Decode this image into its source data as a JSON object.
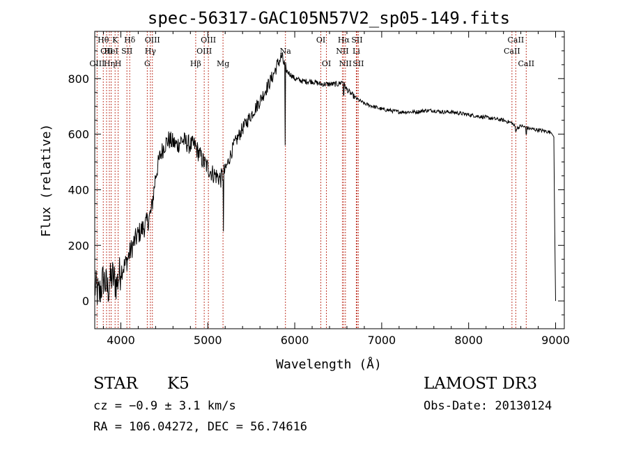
{
  "chart_data": {
    "type": "line",
    "title": "spec-56317-GAC105N57V2_sp05-149.fits",
    "xlabel": "Wavelength (Å)",
    "ylabel": "Flux (relative)",
    "xlim": [
      3700,
      9100
    ],
    "ylim": [
      -100,
      970
    ],
    "x_ticks": [
      4000,
      5000,
      6000,
      7000,
      8000,
      9000
    ],
    "y_ticks": [
      0,
      200,
      400,
      600,
      800
    ],
    "x_tick_labels": [
      "4000",
      "5000",
      "6000",
      "7000",
      "8000",
      "9000"
    ],
    "y_tick_labels": [
      "0",
      "200",
      "400",
      "600",
      "800"
    ],
    "series": [
      {
        "name": "spectrum",
        "anchors": [
          [
            3700,
            50
          ],
          [
            3750,
            20
          ],
          [
            3800,
            80
          ],
          [
            3850,
            40
          ],
          [
            3900,
            90
          ],
          [
            3950,
            60
          ],
          [
            4000,
            110
          ],
          [
            4050,
            130
          ],
          [
            4100,
            170
          ],
          [
            4150,
            210
          ],
          [
            4200,
            240
          ],
          [
            4250,
            260
          ],
          [
            4300,
            280
          ],
          [
            4350,
            320
          ],
          [
            4400,
            450
          ],
          [
            4450,
            520
          ],
          [
            4500,
            560
          ],
          [
            4550,
            580
          ],
          [
            4600,
            570
          ],
          [
            4650,
            560
          ],
          [
            4700,
            580
          ],
          [
            4750,
            570
          ],
          [
            4800,
            560
          ],
          [
            4850,
            560
          ],
          [
            4900,
            530
          ],
          [
            4950,
            500
          ],
          [
            5000,
            480
          ],
          [
            5050,
            460
          ],
          [
            5100,
            450
          ],
          [
            5150,
            440
          ],
          [
            5200,
            470
          ],
          [
            5300,
            560
          ],
          [
            5400,
            620
          ],
          [
            5500,
            670
          ],
          [
            5600,
            720
          ],
          [
            5700,
            780
          ],
          [
            5750,
            810
          ],
          [
            5800,
            850
          ],
          [
            5850,
            880
          ],
          [
            5900,
            830
          ],
          [
            6000,
            800
          ],
          [
            6100,
            790
          ],
          [
            6200,
            790
          ],
          [
            6300,
            780
          ],
          [
            6400,
            780
          ],
          [
            6500,
            780
          ],
          [
            6550,
            790
          ],
          [
            6600,
            760
          ],
          [
            6700,
            730
          ],
          [
            6800,
            710
          ],
          [
            6900,
            700
          ],
          [
            7000,
            690
          ],
          [
            7100,
            685
          ],
          [
            7200,
            680
          ],
          [
            7300,
            680
          ],
          [
            7400,
            680
          ],
          [
            7500,
            685
          ],
          [
            7600,
            685
          ],
          [
            7700,
            680
          ],
          [
            7800,
            680
          ],
          [
            7900,
            675
          ],
          [
            8000,
            670
          ],
          [
            8100,
            665
          ],
          [
            8200,
            660
          ],
          [
            8300,
            655
          ],
          [
            8400,
            650
          ],
          [
            8500,
            640
          ],
          [
            8550,
            620
          ],
          [
            8600,
            630
          ],
          [
            8700,
            620
          ],
          [
            8800,
            615
          ],
          [
            8900,
            610
          ],
          [
            8950,
            605
          ],
          [
            8980,
            590
          ],
          [
            8990,
            250
          ],
          [
            9000,
            0
          ]
        ],
        "noise": [
          [
            3700,
            4000,
            70
          ],
          [
            4000,
            4400,
            40
          ],
          [
            4400,
            5200,
            35
          ],
          [
            5200,
            5900,
            25
          ],
          [
            5900,
            6700,
            10
          ],
          [
            6700,
            8950,
            7
          ]
        ]
      }
    ],
    "spikes": [
      [
        5180,
        250
      ],
      [
        5890,
        560
      ],
      [
        6563,
        740
      ],
      [
        8542,
        610
      ],
      [
        8662,
        600
      ]
    ],
    "line_markers": [
      {
        "wl": 3798,
        "label": "Hθ",
        "row": 1
      },
      {
        "wl": 3836,
        "label": "OII",
        "row": 2
      },
      {
        "wl": 3727,
        "label": "OIII",
        "row": 3
      },
      {
        "wl": 3868,
        "label": "Hη",
        "row": 3
      },
      {
        "wl": 3889,
        "label": "HeI",
        "row": 2
      },
      {
        "wl": 3934,
        "label": "K",
        "row": 1
      },
      {
        "wl": 3969,
        "label": "H",
        "row": 3
      },
      {
        "wl": 4070,
        "label": "SII",
        "row": 2
      },
      {
        "wl": 4102,
        "label": "Hδ",
        "row": 1
      },
      {
        "wl": 4304,
        "label": "G",
        "row": 3
      },
      {
        "wl": 4340,
        "label": "Hγ",
        "row": 2
      },
      {
        "wl": 4363,
        "label": "OIII",
        "row": 1
      },
      {
        "wl": 4861,
        "label": "Hβ",
        "row": 3
      },
      {
        "wl": 4959,
        "label": "OIII",
        "row": 2
      },
      {
        "wl": 5007,
        "label": "OIII",
        "row": 1
      },
      {
        "wl": 5175,
        "label": "Mg",
        "row": 3
      },
      {
        "wl": 5893,
        "label": "Na",
        "row": 2
      },
      {
        "wl": 6300,
        "label": "OI",
        "row": 1
      },
      {
        "wl": 6364,
        "label": "OI",
        "row": 3
      },
      {
        "wl": 6548,
        "label": "NII",
        "row": 2
      },
      {
        "wl": 6563,
        "label": "Hα",
        "row": 1
      },
      {
        "wl": 6583,
        "label": "NII",
        "row": 3
      },
      {
        "wl": 6708,
        "label": "Li",
        "row": 2
      },
      {
        "wl": 6716,
        "label": "SII",
        "row": 1
      },
      {
        "wl": 6731,
        "label": "SII",
        "row": 3
      },
      {
        "wl": 8498,
        "label": "CaII",
        "row": 2
      },
      {
        "wl": 8542,
        "label": "CaII",
        "row": 1
      },
      {
        "wl": 8662,
        "label": "CaII",
        "row": 3
      }
    ]
  },
  "info": {
    "class": "STAR",
    "subclass": "K5",
    "survey": "LAMOST DR3",
    "cz": "cz = −0.9 ± 3.1 km/s",
    "obs_date": "Obs-Date: 20130124",
    "coords": "RA = 106.04272, DEC =  56.74616"
  }
}
